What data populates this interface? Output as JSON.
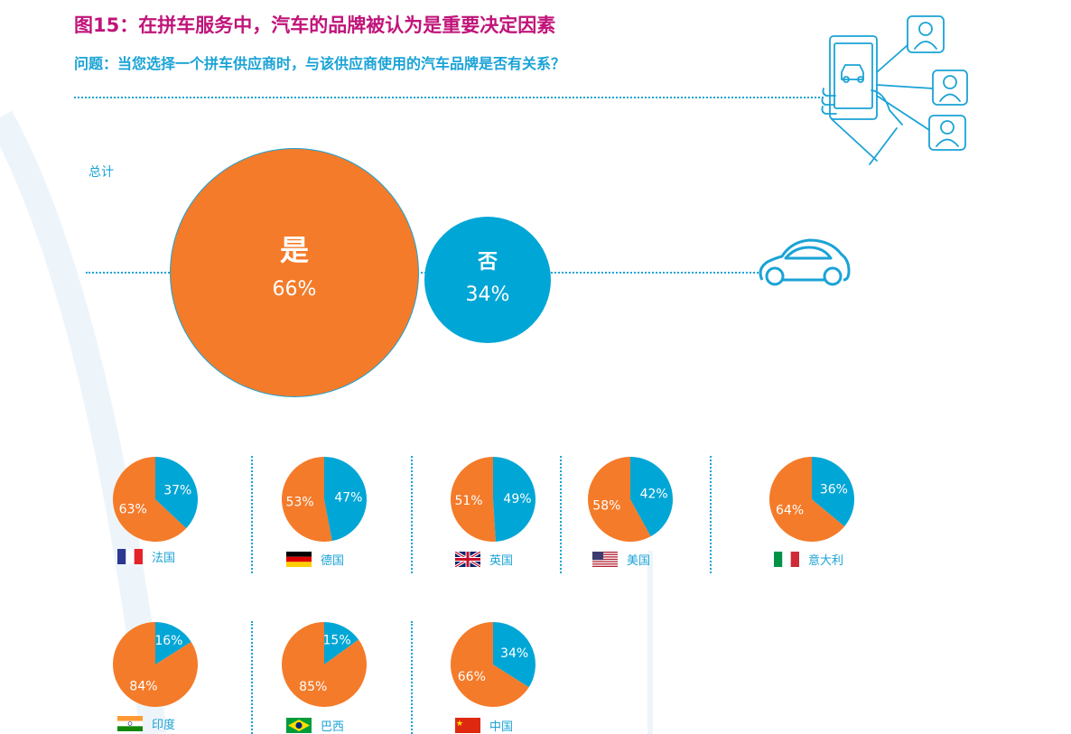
{
  "header": {
    "title": "图15：在拼车服务中，汽车的品牌被认为是重要决定因素",
    "subtitle": "问题：当您选择一个拼车供应商时，与该供应商使用的汽车品牌是否有关系？"
  },
  "total": {
    "label": "总计",
    "yes_label": "是",
    "yes_value": "66%",
    "no_label": "否",
    "no_value": "34%"
  },
  "colors": {
    "yes": "#f47b2a",
    "no": "#00a6d6",
    "title": "#c0147a",
    "accent": "#1aa3d6"
  },
  "icons": [
    "car-outline-icon",
    "smartphone-hand-icon",
    "person-avatar-icon"
  ],
  "chart_data": [
    {
      "type": "pie",
      "title": "总计",
      "labels": [
        "是",
        "否"
      ],
      "values": [
        66,
        34
      ]
    },
    {
      "type": "pie",
      "countries": [
        {
          "name": "法国",
          "flag": "france-flag-icon",
          "yes": 63,
          "no": 37,
          "yes_text": "63%",
          "no_text": "37%"
        },
        {
          "name": "德国",
          "flag": "germany-flag-icon",
          "yes": 53,
          "no": 47,
          "yes_text": "53%",
          "no_text": "47%"
        },
        {
          "name": "英国",
          "flag": "uk-flag-icon",
          "yes": 51,
          "no": 49,
          "yes_text": "51%",
          "no_text": "49%"
        },
        {
          "name": "美国",
          "flag": "usa-flag-icon",
          "yes": 58,
          "no": 42,
          "yes_text": "58%",
          "no_text": "42%"
        },
        {
          "name": "意大利",
          "flag": "italy-flag-icon",
          "yes": 64,
          "no": 36,
          "yes_text": "64%",
          "no_text": "36%"
        },
        {
          "name": "印度",
          "flag": "india-flag-icon",
          "yes": 84,
          "no": 16,
          "yes_text": "84%",
          "no_text": "16%"
        },
        {
          "name": "巴西",
          "flag": "brazil-flag-icon",
          "yes": 85,
          "no": 15,
          "yes_text": "85%",
          "no_text": "15%"
        },
        {
          "name": "中国",
          "flag": "china-flag-icon",
          "yes": 66,
          "no": 34,
          "yes_text": "66%",
          "no_text": "34%"
        }
      ]
    }
  ]
}
